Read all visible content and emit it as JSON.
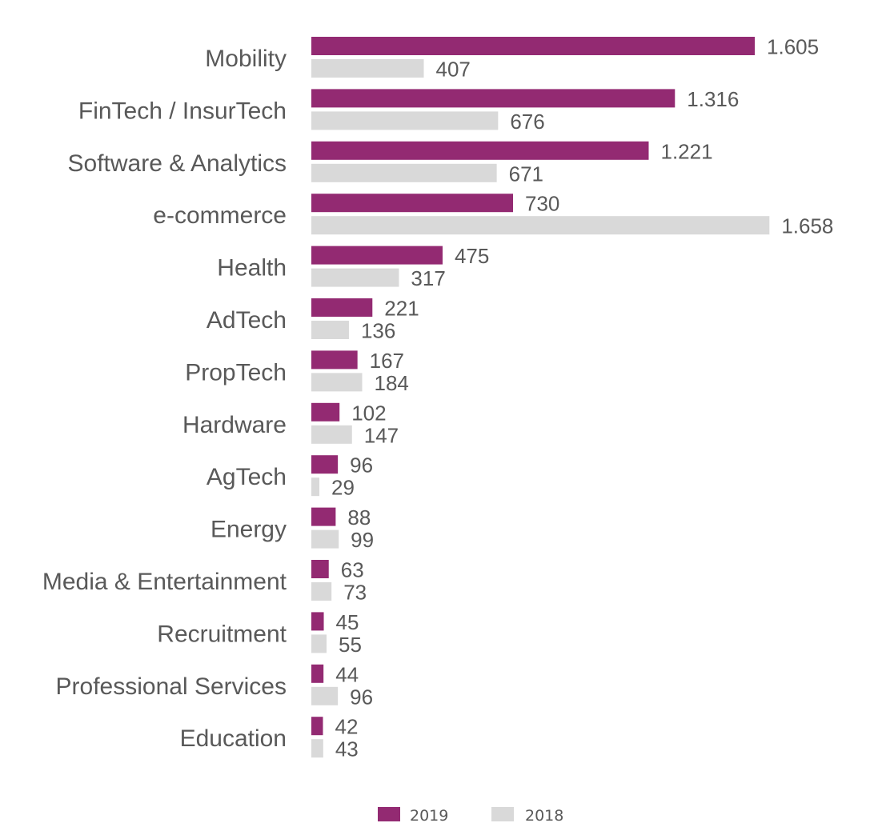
{
  "chart_data": {
    "type": "bar",
    "orientation": "horizontal",
    "title": "",
    "xlabel": "",
    "ylabel": "",
    "grid": false,
    "legend_position": "bottom",
    "xlim": [
      0,
      1700
    ],
    "categories": [
      "Mobility",
      "FinTech / InsurTech",
      "Software & Analytics",
      "e-commerce",
      "Health",
      "AdTech",
      "PropTech",
      "Hardware",
      "AgTech",
      "Energy",
      "Media & Entertainment",
      "Recruitment",
      "Professional Services",
      "Education"
    ],
    "series": [
      {
        "name": "2019",
        "color": "#932a72",
        "values": [
          1605,
          1316,
          1221,
          730,
          475,
          221,
          167,
          102,
          96,
          88,
          63,
          45,
          44,
          42
        ],
        "labels": [
          "1.605",
          "1.316",
          "1.221",
          "730",
          "475",
          "221",
          "167",
          "102",
          "96",
          "88",
          "63",
          "45",
          "44",
          "42"
        ]
      },
      {
        "name": "2018",
        "color": "#d9d9d9",
        "values": [
          407,
          676,
          671,
          1658,
          317,
          136,
          184,
          147,
          29,
          99,
          73,
          55,
          96,
          43
        ],
        "labels": [
          "407",
          "676",
          "671",
          "1.658",
          "317",
          "136",
          "184",
          "147",
          "29",
          "99",
          "73",
          "55",
          "96",
          "43"
        ]
      }
    ]
  }
}
